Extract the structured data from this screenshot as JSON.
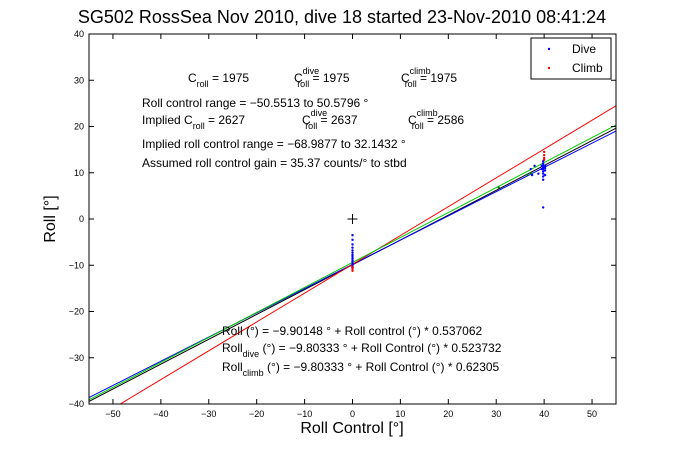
{
  "chart_data": {
    "type": "scatter",
    "title": "SG502 RossSea Nov 2010, dive 18 started 23-Nov-2010 08:41:24",
    "xlabel": "Roll Control [°]",
    "ylabel": "Roll [°]",
    "xlim": [
      -55,
      55
    ],
    "ylim": [
      -40,
      40
    ],
    "xticks": [
      -50,
      -40,
      -30,
      -20,
      -10,
      0,
      10,
      20,
      30,
      40,
      50
    ],
    "yticks": [
      -40,
      -30,
      -20,
      -10,
      0,
      10,
      20,
      30,
      40
    ],
    "xtick_labels": [
      "−50",
      "−40",
      "−30",
      "−20",
      "−10",
      "0",
      "10",
      "20",
      "30",
      "40",
      "50"
    ],
    "ytick_labels": [
      "−40",
      "−30",
      "−20",
      "−10",
      "0",
      "10",
      "20",
      "30",
      "40"
    ],
    "grid": false,
    "legend_position": "top-right",
    "series": [
      {
        "name": "Dive",
        "color": "#0000ff",
        "marker": "dot",
        "points": [
          [
            0,
            -3.5
          ],
          [
            0,
            -4.5
          ],
          [
            0,
            -5.5
          ],
          [
            0,
            -6.2
          ],
          [
            0,
            -6.8
          ],
          [
            0,
            -7.3
          ],
          [
            0,
            -7.8
          ],
          [
            0,
            -8.2
          ],
          [
            0,
            -8.6
          ],
          [
            0,
            -9.0
          ],
          [
            0,
            -9.3
          ],
          [
            0,
            -9.6
          ],
          [
            0,
            -9.9
          ],
          [
            0,
            -10.2
          ],
          [
            0,
            -10.5
          ],
          [
            39.8,
            2.5
          ],
          [
            39.8,
            8.5
          ],
          [
            39.8,
            9.2
          ],
          [
            39.8,
            9.8
          ],
          [
            39.8,
            10.3
          ],
          [
            39.8,
            10.8
          ],
          [
            39.8,
            11.2
          ],
          [
            39.8,
            11.6
          ],
          [
            39.8,
            12.0
          ],
          [
            39.8,
            12.5
          ],
          [
            40.2,
            10.5
          ],
          [
            40.2,
            11.0
          ],
          [
            40.2,
            11.5
          ],
          [
            40.2,
            9.5
          ],
          [
            39.5,
            10.8
          ],
          [
            39.5,
            11.5
          ],
          [
            37.2,
            10.8
          ],
          [
            38.0,
            11.5
          ],
          [
            37.5,
            9.5
          ],
          [
            38.8,
            9.8
          ]
        ]
      },
      {
        "name": "Climb",
        "color": "#ff0000",
        "marker": "dot",
        "points": [
          [
            0,
            -10.3
          ],
          [
            0,
            -10.8
          ],
          [
            0,
            -11.2
          ],
          [
            40,
            13.8
          ],
          [
            40,
            14.5
          ],
          [
            40,
            13.2
          ],
          [
            40,
            12.8
          ]
        ]
      },
      {
        "name": "",
        "color": "#008000",
        "marker": "dot",
        "points": [
          [
            36.5,
            9.6
          ],
          [
            37.3,
            9.9
          ],
          [
            30.5,
            6.8
          ]
        ]
      }
    ],
    "fit_lines": [
      {
        "intercept": -9.90148,
        "slope": 0.537062,
        "color": "#000000"
      },
      {
        "intercept": -9.80333,
        "slope": 0.523732,
        "color": "#0000ff"
      },
      {
        "intercept": -9.80333,
        "slope": 0.62305,
        "color": "#ff0000"
      },
      {
        "intercept": -9.4,
        "slope": 0.54,
        "color": "#00cc00"
      }
    ],
    "center_marker": [
      0,
      0
    ],
    "annotations": {
      "c_roll": {
        "base": "C",
        "sub": "roll",
        "rest": " = 1975"
      },
      "c_roll_dive": {
        "base": "C",
        "sub": "roll",
        "sup": "dive",
        "rest": " = 1975"
      },
      "c_roll_climb": {
        "base": "C",
        "sub": "roll",
        "sup": "climb",
        "rest": " = 1975"
      },
      "roll_control_range": "Roll control range = −50.5513 to 50.5796 °",
      "implied_c_roll": {
        "prefix": "Implied C",
        "sub": "roll",
        "rest": " = 2627"
      },
      "implied_c_roll_dive": {
        "base": "C",
        "sub": "roll",
        "sup": "dive",
        "rest": " = 2637"
      },
      "implied_c_roll_climb": {
        "base": "C",
        "sub": "roll",
        "sup": "climb",
        "rest": " = 2586"
      },
      "implied_range": "Implied roll control range = −68.9877 to 32.1432 °",
      "assumed_gain": "Assumed roll control gain = 35.37 counts/° to stbd",
      "fit_all": "Roll (°) = −9.90148 ° + Roll control (°) * 0.537062",
      "fit_dive": {
        "base": "Roll",
        "sub": "dive",
        "rest": " (°) = −9.80333 ° + Roll Control (°) * 0.523732"
      },
      "fit_climb": {
        "base": "Roll",
        "sub": "climb",
        "rest": " (°) = −9.80333 ° + Roll Control (°) * 0.62305"
      }
    }
  }
}
